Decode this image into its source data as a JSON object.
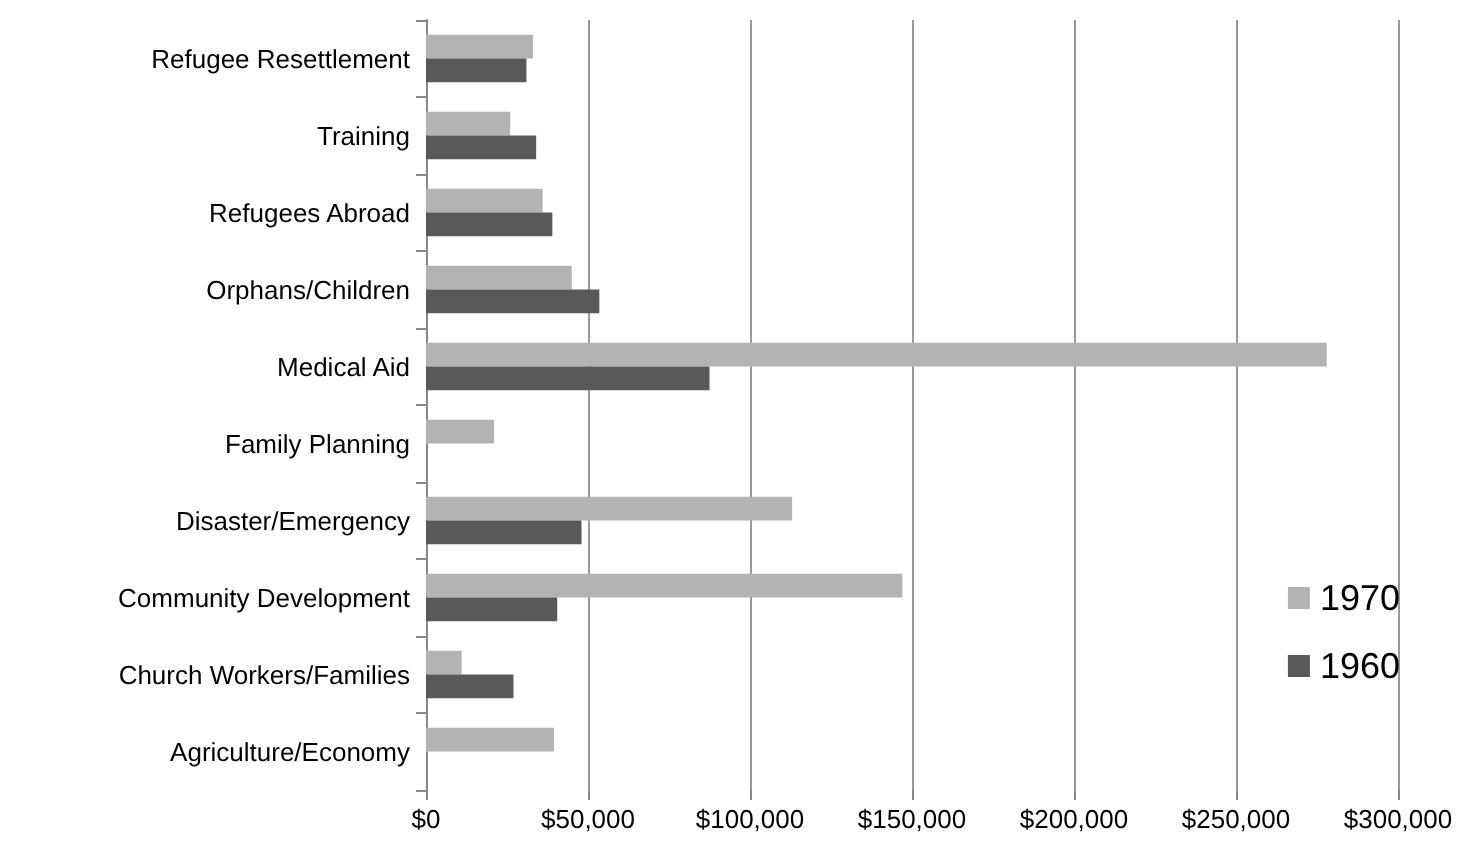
{
  "chart_data": {
    "type": "bar",
    "orientation": "horizontal",
    "categories": [
      "Refugee Resettlement",
      "Training",
      "Refugees Abroad",
      "Orphans/Children",
      "Medical Aid",
      "Family Planning",
      "Disaster/Emergency",
      "Community Development",
      "Church Workers/Families",
      "Agriculture/Economy"
    ],
    "series": [
      {
        "name": "1970",
        "color": "#b3b3b3",
        "values": [
          33000,
          26000,
          36000,
          45000,
          278000,
          21000,
          113000,
          147000,
          11000,
          39500
        ]
      },
      {
        "name": "1960",
        "color": "#595959",
        "values": [
          31000,
          34000,
          39000,
          53500,
          87500,
          null,
          48000,
          40500,
          27000,
          null
        ]
      }
    ],
    "xlim": [
      0,
      300000
    ],
    "xticks": [
      {
        "value": 0,
        "label": "$0"
      },
      {
        "value": 50000,
        "label": "$50,000"
      },
      {
        "value": 100000,
        "label": "$100,000"
      },
      {
        "value": 150000,
        "label": "$150,000"
      },
      {
        "value": 200000,
        "label": "$200,000"
      },
      {
        "value": 250000,
        "label": "$250,000"
      },
      {
        "value": 300000,
        "label": "$300,000"
      }
    ],
    "grid": "x",
    "legend": "right"
  }
}
